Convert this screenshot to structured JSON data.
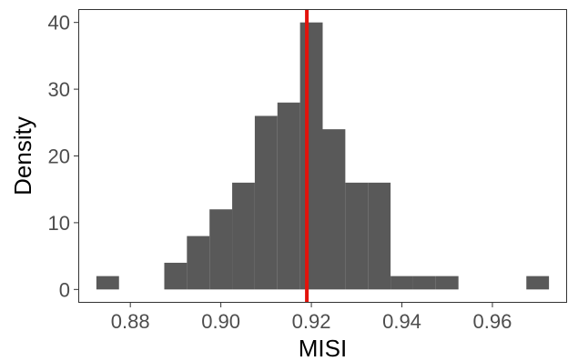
{
  "chart_data": {
    "type": "histogram",
    "xlabel": "MISI",
    "ylabel": "Density",
    "xlim": [
      0.8685,
      0.9765
    ],
    "ylim": [
      -2.0,
      42.0
    ],
    "x_ticks": [
      0.88,
      0.9,
      0.92,
      0.94,
      0.96
    ],
    "x_tick_labels": [
      "0.88",
      "0.90",
      "0.92",
      "0.94",
      "0.96"
    ],
    "y_ticks": [
      0,
      10,
      20,
      30,
      40
    ],
    "y_tick_labels": [
      "0",
      "10",
      "20",
      "30",
      "40"
    ],
    "bin_width": 0.005,
    "bins": [
      {
        "x0": 0.8725,
        "x1": 0.8775,
        "density": 2
      },
      {
        "x0": 0.8875,
        "x1": 0.8925,
        "density": 4
      },
      {
        "x0": 0.8925,
        "x1": 0.8975,
        "density": 8
      },
      {
        "x0": 0.8975,
        "x1": 0.9025,
        "density": 12
      },
      {
        "x0": 0.9025,
        "x1": 0.9075,
        "density": 16
      },
      {
        "x0": 0.9075,
        "x1": 0.9125,
        "density": 26
      },
      {
        "x0": 0.9125,
        "x1": 0.9175,
        "density": 28
      },
      {
        "x0": 0.9175,
        "x1": 0.9225,
        "density": 40
      },
      {
        "x0": 0.9225,
        "x1": 0.9275,
        "density": 24
      },
      {
        "x0": 0.9275,
        "x1": 0.9325,
        "density": 16
      },
      {
        "x0": 0.9325,
        "x1": 0.9375,
        "density": 16
      },
      {
        "x0": 0.9375,
        "x1": 0.9425,
        "density": 2
      },
      {
        "x0": 0.9425,
        "x1": 0.9475,
        "density": 2
      },
      {
        "x0": 0.9475,
        "x1": 0.9525,
        "density": 2
      },
      {
        "x0": 0.9675,
        "x1": 0.9725,
        "density": 2
      }
    ],
    "reference_line": {
      "x": 0.919,
      "color": "#e3120b"
    },
    "bar_color": "#595959",
    "grid": false,
    "panel_border": true
  }
}
